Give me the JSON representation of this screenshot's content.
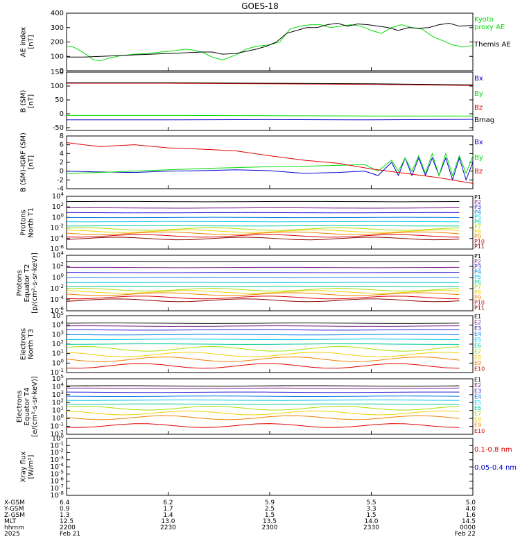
{
  "title": "GOES-18",
  "x_axis": {
    "start": "2200",
    "end": "0000",
    "ticks": [
      {
        "x_gsm": "6.4",
        "y_gsm": "0.9",
        "z_gsm": "1.3",
        "mlt": "12.5",
        "hhmm": "2200",
        "date": "Feb 21"
      },
      {
        "x_gsm": "6.2",
        "y_gsm": "1.7",
        "z_gsm": "1.4",
        "mlt": "13.0",
        "hhmm": "2230",
        "date": ""
      },
      {
        "x_gsm": "5.9",
        "y_gsm": "2.5",
        "z_gsm": "1.5",
        "mlt": "13.5",
        "hhmm": "2300",
        "date": ""
      },
      {
        "x_gsm": "5.5",
        "y_gsm": "3.3",
        "z_gsm": "1.5",
        "mlt": "14.0",
        "hhmm": "2330",
        "date": ""
      },
      {
        "x_gsm": "5.0",
        "y_gsm": "4.0",
        "z_gsm": "1.6",
        "mlt": "14.5",
        "hhmm": "0000",
        "date": "Feb 22"
      }
    ],
    "row_labels": [
      "X-GSM",
      "Y-GSM",
      "Z-GSM",
      "MLT",
      "hhmm",
      "2025"
    ]
  },
  "colors": {
    "black": "#000000",
    "green": "#00dd00",
    "red": "#dd0000",
    "blue": "#0000cc",
    "p_colors": [
      "#000000",
      "#7a1a8c",
      "#2a1ad8",
      "#0a7fe8",
      "#00c8e8",
      "#00c896",
      "#a8e000",
      "#f0d000",
      "#f08000",
      "#dd0000",
      "#8c0000"
    ]
  },
  "chart_data": [
    {
      "type": "line",
      "panel": "ae",
      "ylabel_lines": [
        "AE index",
        "[nT]"
      ],
      "ylim": [
        0,
        400
      ],
      "yticks": [
        "0",
        "100",
        "200",
        "300",
        "400"
      ],
      "series": [
        {
          "name": "Kyoto proxy AE",
          "color": "green",
          "label_lines": [
            "Kyoto",
            "proxy AE"
          ],
          "x": [
            0,
            2,
            4,
            6,
            8,
            10,
            13,
            16,
            20,
            24,
            28,
            32,
            35,
            37,
            40,
            43,
            46,
            50,
            53,
            56,
            60,
            63,
            66,
            69,
            72,
            75,
            78,
            81,
            84,
            87,
            90,
            93,
            96,
            99,
            102,
            105,
            108,
            111,
            114,
            117,
            120
          ],
          "y": [
            170,
            165,
            140,
            110,
            75,
            70,
            90,
            105,
            115,
            120,
            130,
            140,
            150,
            145,
            130,
            95,
            75,
            110,
            150,
            170,
            180,
            200,
            290,
            310,
            320,
            320,
            300,
            310,
            320,
            310,
            280,
            260,
            300,
            320,
            300,
            290,
            240,
            210,
            180,
            165,
            175
          ]
        },
        {
          "name": "Themis AE",
          "color": "black",
          "label_lines": [
            "Themis AE"
          ],
          "x": [
            0,
            5,
            10,
            15,
            20,
            25,
            30,
            35,
            40,
            43,
            46,
            50,
            53,
            56,
            59,
            62,
            65,
            68,
            71,
            74,
            77,
            80,
            83,
            86,
            89,
            92,
            95,
            98,
            101,
            104,
            107,
            110,
            113,
            116,
            120
          ],
          "y": [
            95,
            95,
            100,
            105,
            110,
            115,
            120,
            125,
            130,
            130,
            115,
            120,
            135,
            150,
            170,
            200,
            260,
            280,
            300,
            300,
            320,
            330,
            310,
            325,
            320,
            310,
            300,
            280,
            300,
            295,
            300,
            320,
            330,
            310,
            315
          ]
        }
      ]
    },
    {
      "type": "line",
      "panel": "bsm",
      "ylabel_lines": [
        "B (SM)",
        "[nT]"
      ],
      "ylim": [
        -60,
        150
      ],
      "yticks": [
        "-50",
        "0",
        "50",
        "100",
        "150"
      ],
      "series": [
        {
          "name": "Bx",
          "color": "blue",
          "label_lines": [
            "Bx"
          ],
          "x": [
            0,
            30,
            60,
            90,
            120
          ],
          "y": [
            -22,
            -22,
            -21,
            -22,
            -20
          ]
        },
        {
          "name": "By",
          "color": "green",
          "label_lines": [
            "By"
          ],
          "x": [
            0,
            30,
            60,
            90,
            120
          ],
          "y": [
            -6,
            -6,
            -7,
            -8,
            -8
          ]
        },
        {
          "name": "Bz",
          "color": "red",
          "label_lines": [
            "Bz"
          ],
          "x": [
            0,
            30,
            60,
            90,
            120
          ],
          "y": [
            110,
            110,
            108,
            106,
            102
          ]
        },
        {
          "name": "Bmag",
          "color": "black",
          "label_lines": [
            "Bmag"
          ],
          "x": [
            0,
            30,
            60,
            90,
            120
          ],
          "y": [
            112,
            112,
            110,
            108,
            104
          ]
        }
      ]
    },
    {
      "type": "line",
      "panel": "bsm_igrf",
      "ylabel_lines": [
        "B (SM)-IGRF (SM)",
        "[nT]"
      ],
      "ylim": [
        -4,
        8
      ],
      "yticks": [
        "-4",
        "-2",
        "0",
        "2",
        "4",
        "6",
        "8"
      ],
      "series": [
        {
          "name": "Bx",
          "color": "blue",
          "label_lines": [
            "Bx"
          ],
          "x": [
            0,
            10,
            20,
            30,
            40,
            50,
            60,
            70,
            80,
            88,
            92,
            96,
            98,
            100,
            102,
            104,
            106,
            108,
            110,
            112,
            114,
            116,
            118,
            120
          ],
          "y": [
            0,
            -0.2,
            -0.3,
            0,
            0.1,
            0.3,
            0.1,
            -0.5,
            -0.3,
            0,
            -1,
            2,
            -1,
            3,
            -1,
            3,
            -1,
            3,
            -1,
            3,
            -2,
            3,
            -2,
            2
          ]
        },
        {
          "name": "By",
          "color": "green",
          "label_lines": [
            "By"
          ],
          "x": [
            0,
            10,
            20,
            30,
            40,
            50,
            60,
            70,
            80,
            88,
            92,
            96,
            98,
            100,
            102,
            104,
            106,
            108,
            110,
            112,
            114,
            116,
            118,
            120
          ],
          "y": [
            -0.5,
            -0.3,
            0,
            0.3,
            0.6,
            0.8,
            1,
            1.1,
            1.3,
            1.5,
            0,
            2.5,
            0,
            3,
            0,
            3.5,
            -0.5,
            4,
            -1,
            4,
            -1,
            3.5,
            -0.5,
            3.5
          ]
        },
        {
          "name": "Bz",
          "color": "red",
          "label_lines": [
            "Bz"
          ],
          "x": [
            0,
            5,
            10,
            20,
            30,
            40,
            50,
            60,
            70,
            80,
            90,
            100,
            110,
            120
          ],
          "y": [
            6.5,
            6,
            5.6,
            6,
            5.3,
            5,
            4.6,
            3.5,
            2.5,
            1.8,
            0.5,
            -0.5,
            -1.5,
            -2.8
          ]
        }
      ]
    },
    {
      "type": "line",
      "panel": "protons_t1",
      "log": true,
      "ylabel_lines": [
        "Protons",
        "North T1"
      ],
      "ylim_exp": [
        -6,
        4
      ],
      "yticks_exp": [
        -6,
        -4,
        -2,
        0,
        2,
        4
      ],
      "labels": [
        "P1",
        "P2",
        "P3",
        "P4",
        "P5",
        "P6",
        "P7",
        "P8",
        "P9",
        "P10",
        "P11"
      ],
      "levels_exp": [
        3.0,
        1.8,
        0.9,
        0.0,
        -0.8,
        -1.6,
        -2.2,
        -2.6,
        -3.0,
        -3.5,
        -4.0
      ]
    },
    {
      "type": "line",
      "panel": "protons_t2",
      "log": true,
      "ylabel_lines": [
        "Protons",
        "Equator T2",
        "[p/(cm²-s-sr-keV)]"
      ],
      "ylim_exp": [
        -6,
        4
      ],
      "yticks_exp": [
        -6,
        -4,
        -2,
        0,
        2,
        4
      ],
      "labels": [
        "P1",
        "P2",
        "P3",
        "P4",
        "P5",
        "P6",
        "P7",
        "P8",
        "P9",
        "P10",
        "P11"
      ],
      "levels_exp": [
        2.9,
        1.8,
        0.9,
        0.0,
        -0.9,
        -1.6,
        -2.2,
        -2.6,
        -3.0,
        -3.6,
        -4.1
      ]
    },
    {
      "type": "line",
      "panel": "electrons_t3",
      "log": true,
      "ylabel_lines": [
        "Electrons",
        "North T3"
      ],
      "ylim_exp": [
        -1,
        5
      ],
      "yticks_exp": [
        -1,
        0,
        1,
        2,
        3,
        4,
        5
      ],
      "labels": [
        "E1",
        "E2",
        "E3",
        "E4",
        "E5",
        "E6",
        "E7",
        "E8",
        "E9",
        "E10"
      ],
      "levels_exp": [
        4.2,
        3.9,
        3.5,
        3.0,
        2.5,
        2.0,
        1.5,
        0.9,
        0.4,
        -0.3
      ]
    },
    {
      "type": "line",
      "panel": "electrons_t4",
      "log": true,
      "ylabel_lines": [
        "Electrons",
        "Equator T4",
        "[e/(cm²-s-sr-keV)]"
      ],
      "ylim_exp": [
        -2,
        5
      ],
      "yticks_exp": [
        -2,
        -1,
        0,
        1,
        2,
        3,
        4,
        5
      ],
      "labels": [
        "E1",
        "E2",
        "E3",
        "E4",
        "E5",
        "E6",
        "E7",
        "E8",
        "E9",
        "E10"
      ],
      "levels_exp": [
        4.1,
        3.8,
        3.3,
        2.8,
        2.3,
        1.8,
        1.3,
        0.7,
        0.1,
        -0.9
      ]
    },
    {
      "type": "line",
      "panel": "xray",
      "log": true,
      "ylabel_lines": [
        "Xray flux",
        "[W/m²]"
      ],
      "ylim_exp": [
        -8,
        0
      ],
      "yticks_exp": [
        -8,
        -7,
        -6,
        -5,
        -4,
        -3,
        -2,
        -1,
        0
      ],
      "series": [
        {
          "name": "0.1-0.8 nm",
          "color": "red",
          "label_lines": [
            "0.1-0.8 nm"
          ]
        },
        {
          "name": "0.05-0.4 nm",
          "color": "blue",
          "label_lines": [
            "0.05-0.4 nm"
          ]
        }
      ]
    }
  ]
}
